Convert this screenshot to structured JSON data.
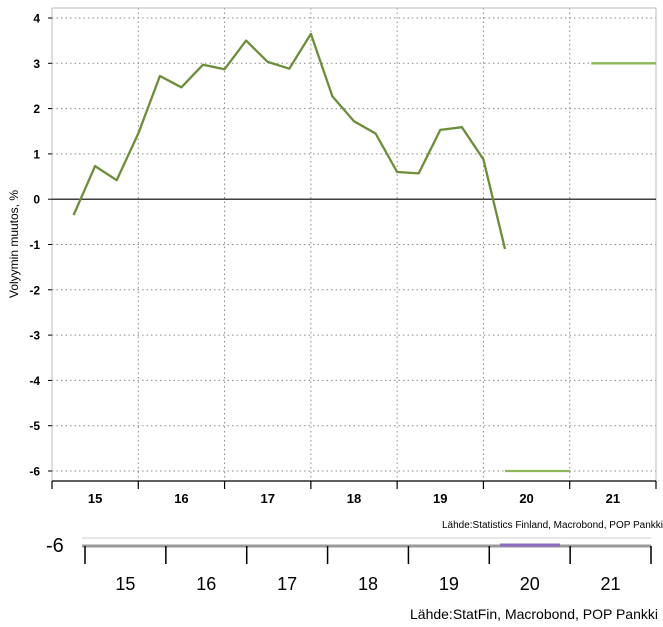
{
  "chart_data": {
    "type": "line",
    "title": "",
    "ylabel": "Volyymin muutos, %",
    "xlabel": "",
    "ylim": [
      -6.2,
      4.2
    ],
    "yticks": [
      4,
      3,
      2,
      1,
      0,
      -1,
      -2,
      -3,
      -4,
      -5,
      -6
    ],
    "ytick_labels": [
      "4",
      "3",
      "2",
      "1",
      "0",
      "-1",
      "-2",
      "-3",
      "-4",
      "-5",
      "-6"
    ],
    "x_categories": [
      "15",
      "16",
      "17",
      "18",
      "19",
      "20",
      "21"
    ],
    "grid": true,
    "series": [
      {
        "color": "#6b8e3a",
        "points": [
          {
            "x": 2014.75,
            "y": -0.35
          },
          {
            "x": 2015.0,
            "y": 0.73
          },
          {
            "x": 2015.25,
            "y": 0.42
          },
          {
            "x": 2015.5,
            "y": 1.45
          },
          {
            "x": 2015.75,
            "y": 2.72
          },
          {
            "x": 2016.0,
            "y": 2.47
          },
          {
            "x": 2016.25,
            "y": 2.97
          },
          {
            "x": 2016.5,
            "y": 2.87
          },
          {
            "x": 2016.75,
            "y": 3.5
          },
          {
            "x": 2017.0,
            "y": 3.03
          },
          {
            "x": 2017.25,
            "y": 2.88
          },
          {
            "x": 2017.5,
            "y": 3.65
          },
          {
            "x": 2017.75,
            "y": 2.27
          },
          {
            "x": 2018.0,
            "y": 1.72
          },
          {
            "x": 2018.25,
            "y": 1.45
          },
          {
            "x": 2018.5,
            "y": 0.6
          },
          {
            "x": 2018.75,
            "y": 0.57
          },
          {
            "x": 2019.0,
            "y": 1.53
          },
          {
            "x": 2019.25,
            "y": 1.59
          },
          {
            "x": 2019.5,
            "y": 0.88
          },
          {
            "x": 2019.75,
            "y": -1.1
          }
        ]
      },
      {
        "color": "#8db85a",
        "segments": [
          {
            "x0": 2019.75,
            "x1": 2020.5,
            "y": -6.0
          },
          {
            "x0": 2020.75,
            "x1": 2021.5,
            "y": 3.0
          }
        ]
      }
    ],
    "source": "Lähde:Statistics Finland, Macrobond, POP Pankki"
  },
  "underlay": {
    "x_categories": [
      "15",
      "16",
      "17",
      "18",
      "19",
      "20",
      "21"
    ],
    "source": "Lähde:StatFin, Macrobond, POP Pankki",
    "fragment_label": "-6",
    "segment_color": "#8e6bbf"
  }
}
